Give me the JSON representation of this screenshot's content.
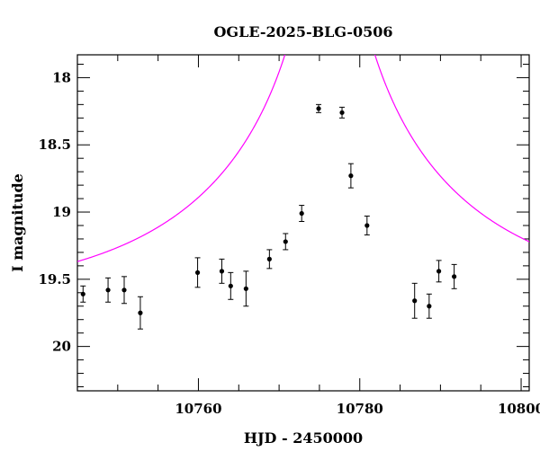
{
  "chart_data": {
    "type": "scatter",
    "title": "OGLE-2025-BLG-0506",
    "xlabel": "HJD - 2450000",
    "ylabel": "I magnitude",
    "xlim": [
      10745,
      10801
    ],
    "ylim": [
      20.33,
      17.83
    ],
    "y_inverted": true,
    "grid": false,
    "x_ticks": [
      10760,
      10780,
      10800
    ],
    "y_ticks": [
      18,
      18.5,
      19,
      19.5,
      20
    ],
    "x_tick_labels": [
      "10760",
      "10780",
      "10800"
    ],
    "y_tick_labels": [
      "18",
      "18.5",
      "19",
      "19.5",
      "20"
    ],
    "series": [
      {
        "kind": "points",
        "color": "#000000",
        "points": [
          {
            "x": 10745.7,
            "y": 19.61,
            "err": 0.06
          },
          {
            "x": 10748.8,
            "y": 19.58,
            "err": 0.09
          },
          {
            "x": 10750.8,
            "y": 19.58,
            "err": 0.1
          },
          {
            "x": 10752.8,
            "y": 19.75,
            "err": 0.12
          },
          {
            "x": 10759.9,
            "y": 19.45,
            "err": 0.11
          },
          {
            "x": 10762.9,
            "y": 19.44,
            "err": 0.09
          },
          {
            "x": 10764.0,
            "y": 19.55,
            "err": 0.1
          },
          {
            "x": 10765.9,
            "y": 19.57,
            "err": 0.13
          },
          {
            "x": 10768.8,
            "y": 19.35,
            "err": 0.07
          },
          {
            "x": 10770.8,
            "y": 19.22,
            "err": 0.06
          },
          {
            "x": 10772.8,
            "y": 19.01,
            "err": 0.06
          },
          {
            "x": 10774.9,
            "y": 18.23,
            "err": 0.03
          },
          {
            "x": 10777.8,
            "y": 18.26,
            "err": 0.04
          },
          {
            "x": 10778.9,
            "y": 18.73,
            "err": 0.09
          },
          {
            "x": 10780.9,
            "y": 19.1,
            "err": 0.07
          },
          {
            "x": 10786.8,
            "y": 19.66,
            "err": 0.13
          },
          {
            "x": 10788.6,
            "y": 19.7,
            "err": 0.09
          },
          {
            "x": 10789.8,
            "y": 19.44,
            "err": 0.08
          },
          {
            "x": 10791.7,
            "y": 19.48,
            "err": 0.09
          }
        ]
      },
      {
        "kind": "model",
        "model": "paczynski",
        "color": "#ff00ff",
        "t0": 10776.3,
        "tE": 30,
        "u0": 0.022,
        "baseline_mag": 19.663
      }
    ]
  }
}
